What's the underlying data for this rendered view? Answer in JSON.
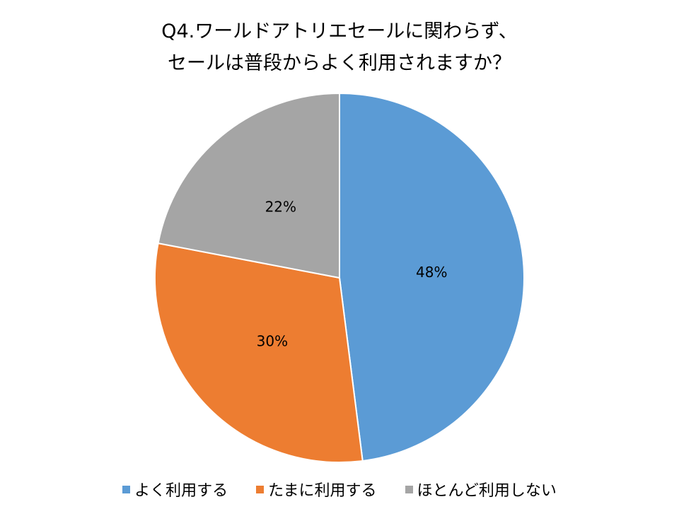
{
  "chart_data": {
    "type": "pie",
    "title": [
      "Q4.ワールドアトリエセールに関わらず、",
      "セールは普段からよく利用されますか？"
    ],
    "categories": [
      "よく利用する",
      "たまに利用する",
      "ほとんど利用しない"
    ],
    "values": [
      48,
      30,
      22
    ],
    "data_labels": [
      "48%",
      "30%",
      "22%"
    ],
    "colors": [
      "#5B9BD5",
      "#ED7D31",
      "#A5A5A5"
    ],
    "start_angle": "top, clockwise",
    "legend_position": "bottom"
  }
}
